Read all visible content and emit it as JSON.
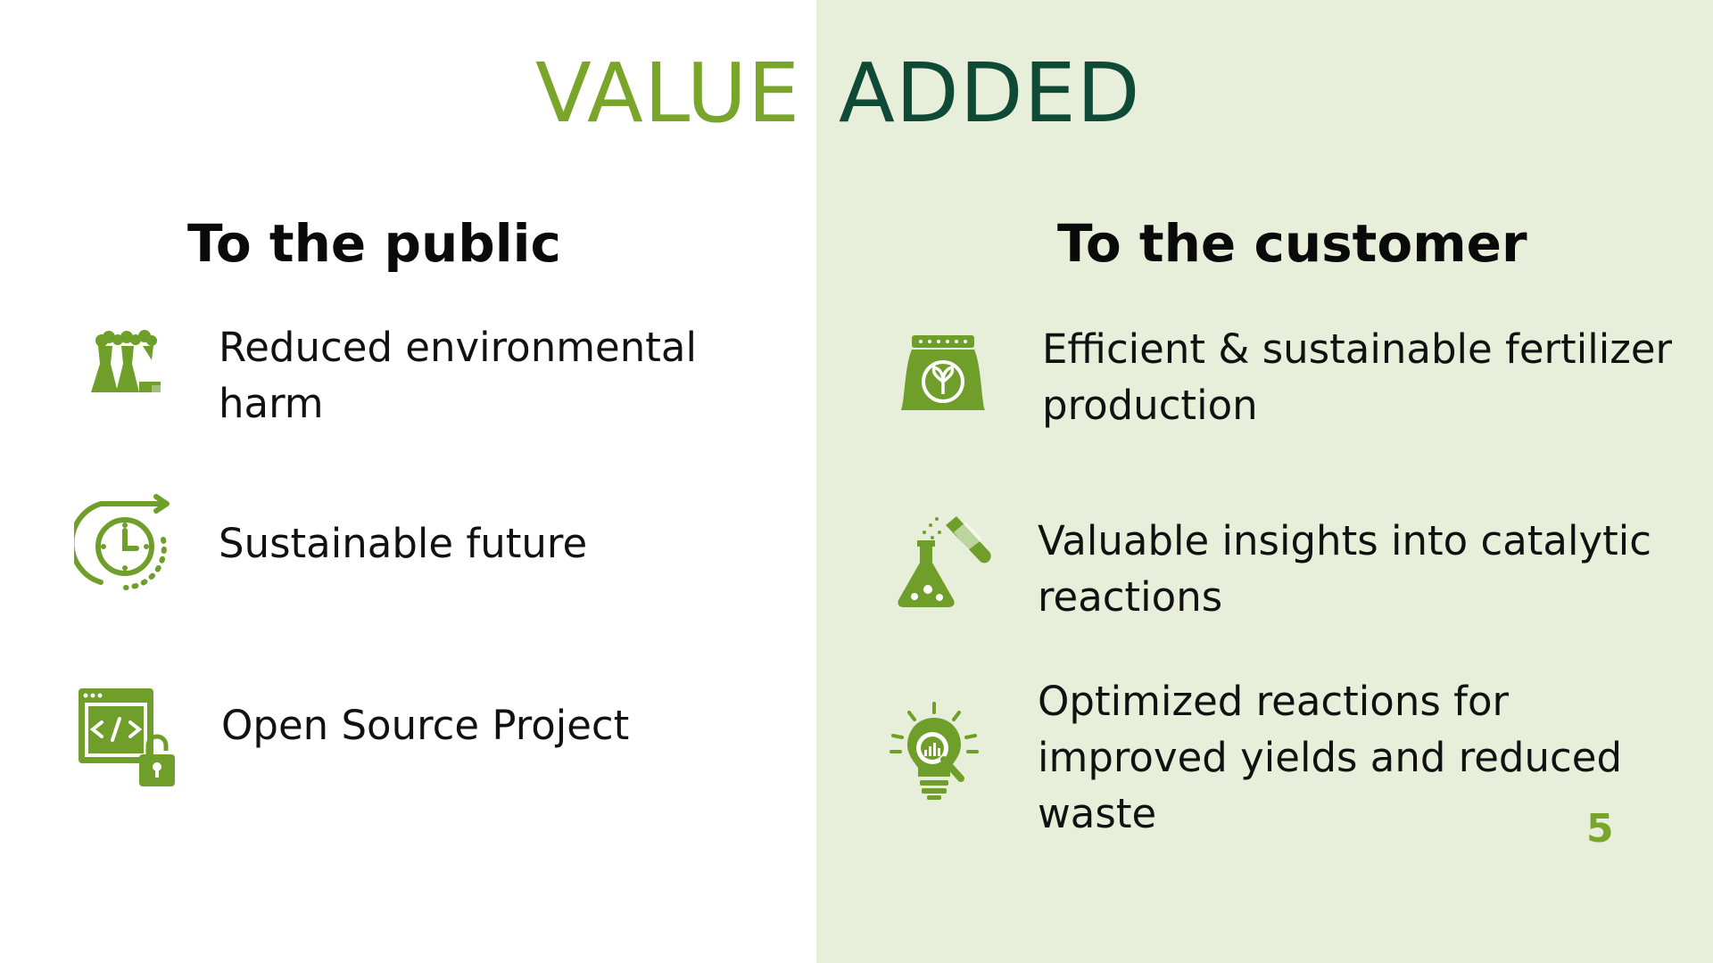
{
  "title": {
    "word1": "VALUE",
    "word2": "ADDED"
  },
  "colors": {
    "accent_green": "#7aa52b",
    "dark_green": "#0e4a36",
    "panel_bg": "#e7eed9",
    "text": "#111111"
  },
  "left": {
    "heading": "To the public",
    "items": [
      {
        "icon": "factory-icon",
        "text": "Reduced environmental harm"
      },
      {
        "icon": "clock-cycle-icon",
        "text": "Sustainable future"
      },
      {
        "icon": "open-source-lock-icon",
        "text": "Open Source Project"
      }
    ]
  },
  "right": {
    "heading": "To the customer",
    "items": [
      {
        "icon": "fertilizer-bag-icon",
        "text": "Efficient & sustainable fertilizer production"
      },
      {
        "icon": "lab-flask-icon",
        "text": "Valuable insights into catalytic reactions"
      },
      {
        "icon": "idea-analytics-icon",
        "text": "Optimized reactions for improved yields and reduced waste"
      }
    ]
  },
  "page_number": "5"
}
